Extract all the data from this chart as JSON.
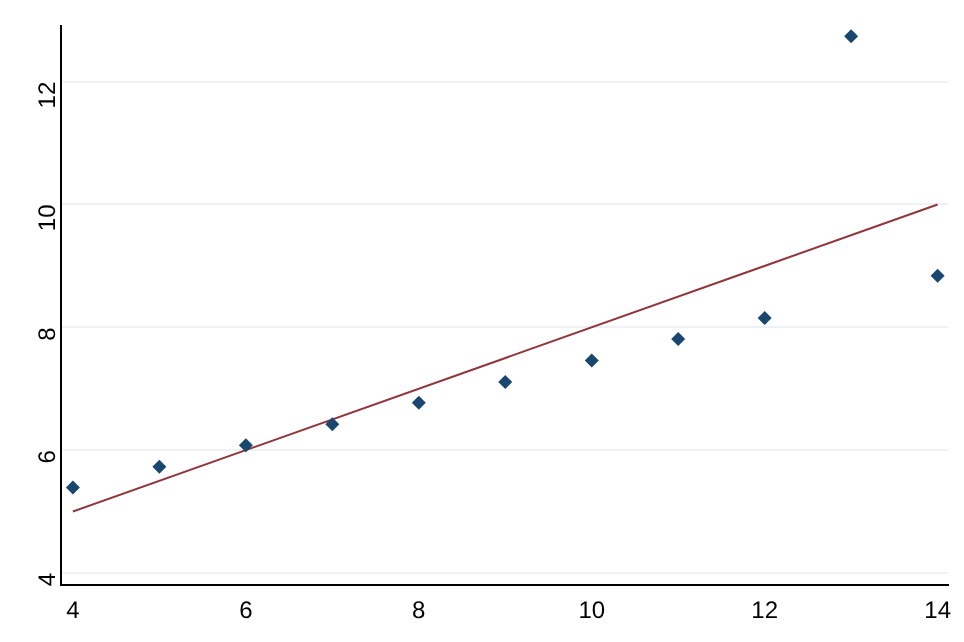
{
  "chart_data": {
    "type": "scatter",
    "xlim": [
      3.86,
      14.12
    ],
    "ylim": [
      3.8,
      12.9
    ],
    "xticks": [
      4,
      6,
      8,
      10,
      12,
      14
    ],
    "yticks": [
      4,
      6,
      8,
      10,
      12
    ],
    "grid": "y",
    "legend": false,
    "series": [
      {
        "type": "scatter",
        "marker": "diamond",
        "color": "#1a476f",
        "x": [
          4,
          5,
          6,
          7,
          8,
          9,
          10,
          11,
          12,
          13,
          14
        ],
        "values": [
          5.39,
          5.73,
          6.08,
          6.42,
          6.77,
          7.11,
          7.46,
          7.81,
          8.15,
          12.74,
          8.84
        ]
      },
      {
        "type": "line",
        "marker": "none",
        "color": "#90353b",
        "x": [
          4,
          14
        ],
        "values": [
          5,
          10
        ]
      }
    ]
  }
}
